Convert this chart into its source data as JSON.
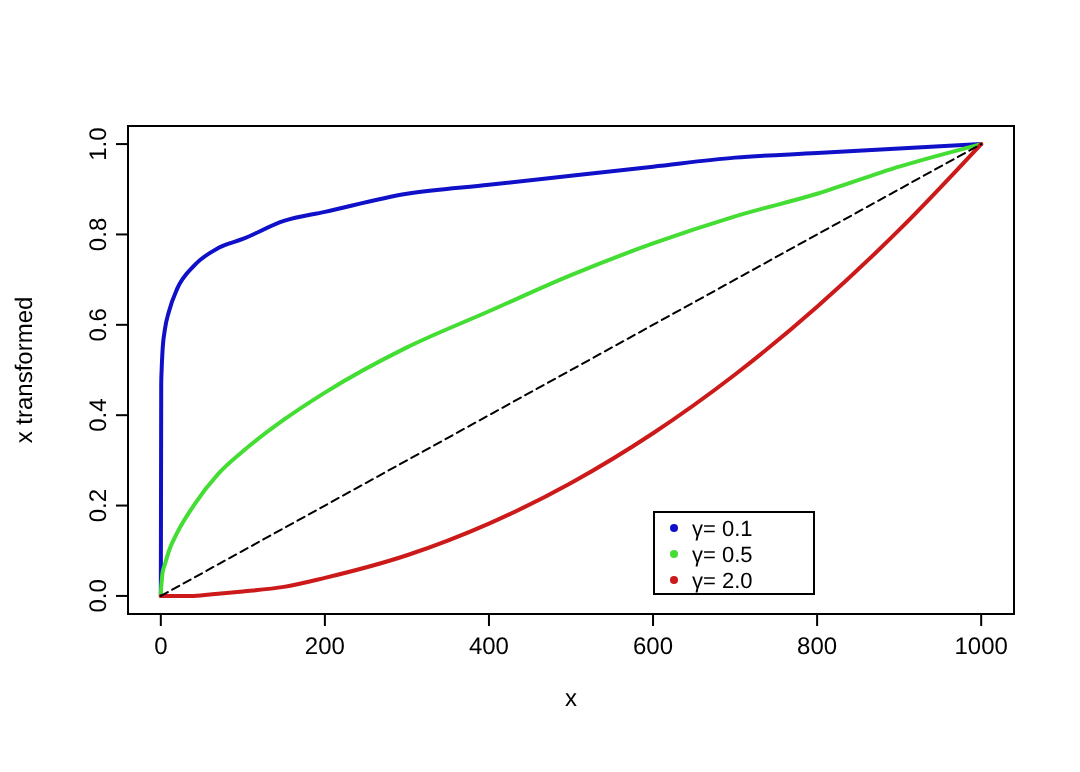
{
  "chart_data": {
    "type": "line",
    "xlabel": "x",
    "ylabel": "x transformed",
    "xlim": [
      -40,
      1040
    ],
    "ylim": [
      -0.04,
      1.04
    ],
    "xticks": [
      0,
      200,
      400,
      600,
      800,
      1000
    ],
    "yticks": [
      {
        "value": 0,
        "label": "0.0"
      },
      {
        "value": 0.2,
        "label": "0.2"
      },
      {
        "value": 0.4,
        "label": "0.4"
      },
      {
        "value": 0.6,
        "label": "0.6"
      },
      {
        "value": 0.8,
        "label": "0.8"
      },
      {
        "value": 1,
        "label": "1.0"
      }
    ],
    "grid": false,
    "legend": "bottom right",
    "x": [
      0,
      0.5,
      1,
      2,
      5,
      10,
      20,
      40,
      70,
      100,
      150,
      200,
      300,
      400,
      500,
      600,
      700,
      800,
      900,
      1000
    ],
    "series": [
      {
        "name": "γ= 0.1",
        "color": "#1010c8",
        "values": [
          0,
          0.47,
          0.5,
          0.54,
          0.59,
          0.63,
          0.68,
          0.73,
          0.77,
          0.79,
          0.83,
          0.85,
          0.89,
          0.91,
          0.93,
          0.95,
          0.97,
          0.98,
          0.99,
          1
        ]
      },
      {
        "name": "γ= 0.5",
        "color": "#44dd33",
        "values": [
          0,
          0.02,
          0.03,
          0.05,
          0.07,
          0.1,
          0.14,
          0.2,
          0.27,
          0.32,
          0.39,
          0.45,
          0.55,
          0.63,
          0.71,
          0.78,
          0.84,
          0.89,
          0.95,
          1
        ]
      },
      {
        "name": "γ= 2.0",
        "color": "#cc1a1a",
        "values": [
          0,
          0,
          0,
          0,
          0,
          0,
          0,
          0,
          0.005,
          0.01,
          0.02,
          0.04,
          0.09,
          0.16,
          0.25,
          0.36,
          0.49,
          0.64,
          0.81,
          1
        ]
      },
      {
        "type": "line",
        "line_style": "dashed",
        "color": "#000000",
        "x": [
          0,
          1000
        ],
        "values": [
          0,
          1
        ]
      }
    ]
  }
}
